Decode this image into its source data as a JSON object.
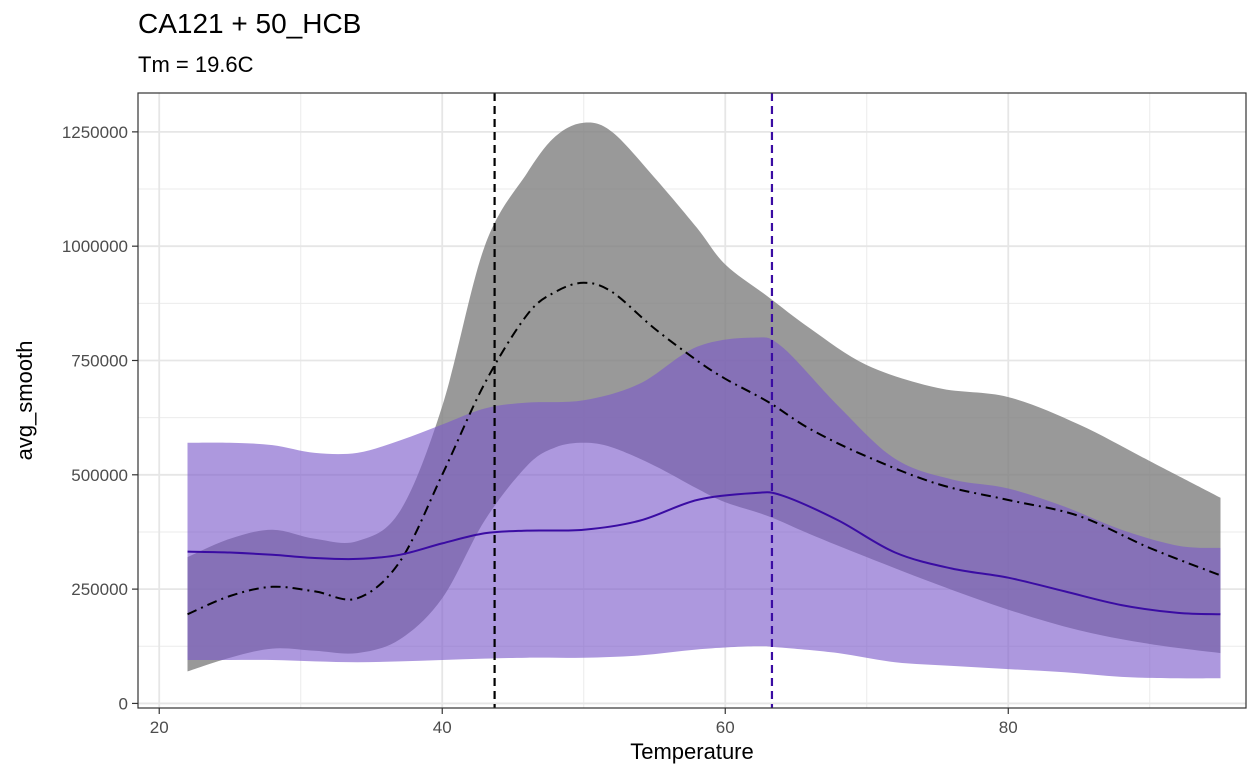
{
  "chart_data": {
    "type": "area",
    "title": "CA121 + 50_HCB",
    "subtitle": "Tm = 19.6C",
    "xlabel": "Temperature",
    "ylabel": "avg_smooth",
    "xlim": [
      18.5,
      96.8
    ],
    "ylim": [
      -10000,
      1335000
    ],
    "x_ticks": [
      20,
      40,
      60,
      80
    ],
    "y_ticks": [
      0,
      250000,
      500000,
      750000,
      1000000,
      1250000
    ],
    "x_tick_labels": [
      "20",
      "40",
      "60",
      "80"
    ],
    "y_tick_labels": [
      "0",
      "250000",
      "500000",
      "750000",
      "1000000",
      "1250000"
    ],
    "grid": true,
    "vlines": [
      {
        "x": 43.7,
        "color": "#000000",
        "style": "dashed"
      },
      {
        "x": 63.3,
        "color": "#3a0ca3",
        "style": "dashed"
      }
    ],
    "series": [
      {
        "color": "#000000",
        "fill": "#7f7f7f",
        "fill_opacity": 0.8,
        "line_style": "dashdot",
        "x": [
          22,
          25,
          28,
          31,
          34,
          37,
          40,
          43,
          46,
          48,
          50,
          52,
          55,
          58,
          60,
          63,
          66,
          70,
          75,
          80,
          85,
          90,
          95
        ],
        "y": [
          195000,
          235000,
          255000,
          245000,
          230000,
          310000,
          500000,
          700000,
          850000,
          900000,
          920000,
          900000,
          820000,
          750000,
          710000,
          660000,
          600000,
          540000,
          480000,
          445000,
          410000,
          340000,
          280000
        ],
        "lower": [
          70000,
          100000,
          120000,
          115000,
          110000,
          140000,
          230000,
          400000,
          520000,
          560000,
          570000,
          560000,
          520000,
          470000,
          440000,
          410000,
          370000,
          320000,
          260000,
          205000,
          160000,
          130000,
          110000
        ],
        "upper": [
          320000,
          360000,
          380000,
          360000,
          355000,
          420000,
          650000,
          1000000,
          1160000,
          1240000,
          1270000,
          1250000,
          1150000,
          1040000,
          960000,
          890000,
          820000,
          740000,
          690000,
          670000,
          610000,
          530000,
          450000
        ]
      },
      {
        "color": "#3a0ca3",
        "fill": "#7b59c9",
        "fill_opacity": 0.62,
        "line_style": "solid",
        "x": [
          22,
          25,
          28,
          31,
          34,
          37,
          40,
          43,
          46,
          50,
          54,
          58,
          62,
          64,
          68,
          72,
          76,
          80,
          84,
          88,
          92,
          95
        ],
        "y": [
          332000,
          330000,
          325000,
          318000,
          316000,
          325000,
          350000,
          372000,
          378000,
          380000,
          400000,
          445000,
          460000,
          455000,
          400000,
          330000,
          295000,
          275000,
          245000,
          215000,
          198000,
          195000
        ],
        "lower": [
          95000,
          95000,
          95000,
          92000,
          90000,
          92000,
          95000,
          98000,
          100000,
          100000,
          105000,
          118000,
          125000,
          122000,
          110000,
          90000,
          82000,
          75000,
          68000,
          58000,
          55000,
          55000
        ],
        "upper": [
          570000,
          570000,
          565000,
          548000,
          548000,
          575000,
          610000,
          645000,
          658000,
          663000,
          700000,
          780000,
          800000,
          780000,
          650000,
          535000,
          490000,
          470000,
          430000,
          380000,
          345000,
          340000
        ]
      }
    ]
  }
}
